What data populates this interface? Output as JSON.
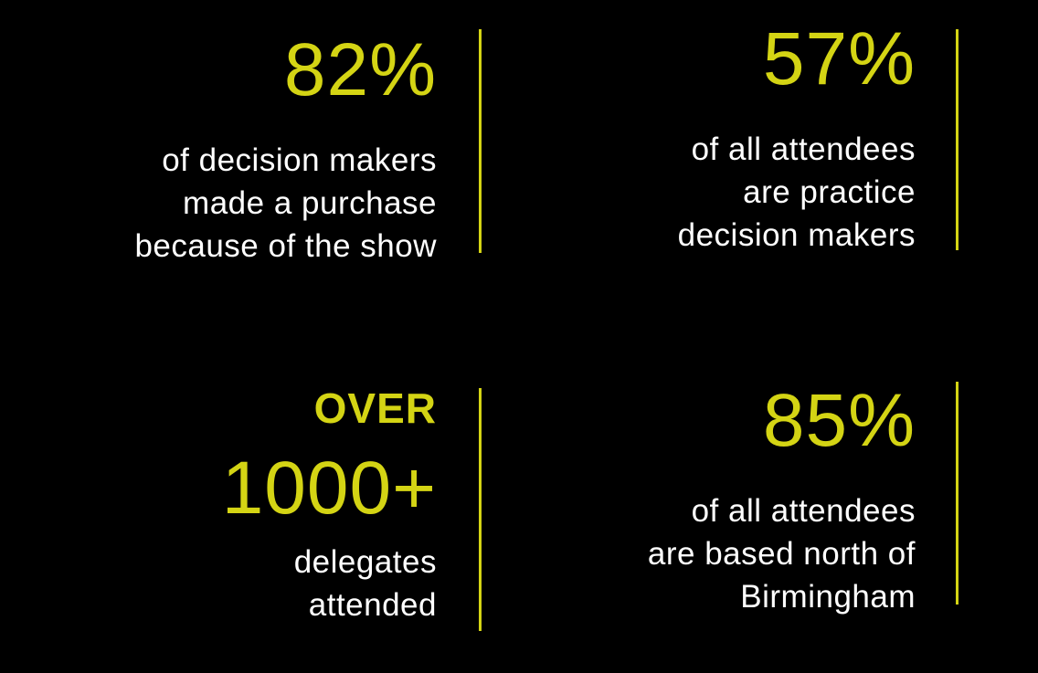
{
  "accent_color": "#d4d414",
  "text_color": "#ffffff",
  "background_color": "#000000",
  "stats": [
    {
      "value": "82%",
      "description": "of decision makers\nmade a purchase\nbecause of the show"
    },
    {
      "value": "57%",
      "description": "of all attendees\nare practice\ndecision makers"
    },
    {
      "prefix": "OVER",
      "value": "1000+",
      "description": "delegates\nattended"
    },
    {
      "value": "85%",
      "description": "of all attendees\nare based north of\nBirmingham"
    }
  ]
}
